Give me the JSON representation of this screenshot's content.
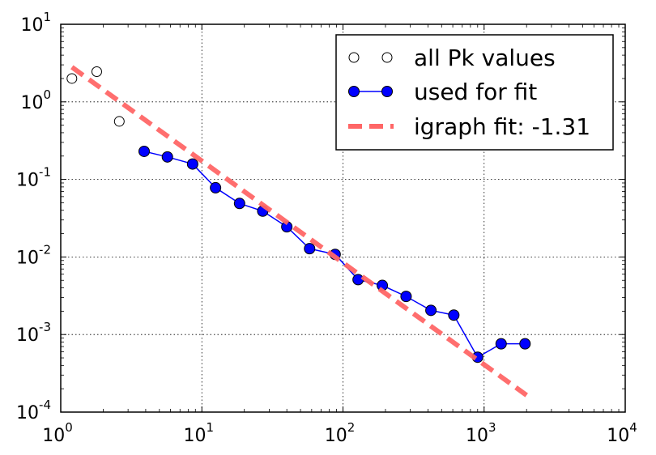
{
  "chart_data": {
    "type": "scatter",
    "x_scale": "log",
    "y_scale": "log",
    "xlim": [
      1,
      10000
    ],
    "ylim": [
      0.0001,
      10
    ],
    "grid": true,
    "legend_position": "top-right",
    "x_ticks": [
      {
        "value": 1,
        "base": "10",
        "exp": "0"
      },
      {
        "value": 10,
        "base": "10",
        "exp": "1"
      },
      {
        "value": 100,
        "base": "10",
        "exp": "2"
      },
      {
        "value": 1000,
        "base": "10",
        "exp": "3"
      },
      {
        "value": 10000,
        "base": "10",
        "exp": "4"
      }
    ],
    "y_ticks": [
      {
        "value": 0.0001,
        "base": "10",
        "exp": "-4"
      },
      {
        "value": 0.001,
        "base": "10",
        "exp": "-3"
      },
      {
        "value": 0.01,
        "base": "10",
        "exp": "-2"
      },
      {
        "value": 0.1,
        "base": "10",
        "exp": "-1"
      },
      {
        "value": 1,
        "base": "10",
        "exp": "0"
      },
      {
        "value": 10,
        "base": "10",
        "exp": "1"
      }
    ],
    "series": [
      {
        "name": "all Pk values",
        "style": "open-markers",
        "color": "#000000",
        "fill": "#ffffff",
        "points": [
          {
            "x": 1.2,
            "y": 2.0
          },
          {
            "x": 1.8,
            "y": 2.45
          },
          {
            "x": 2.6,
            "y": 0.56
          }
        ]
      },
      {
        "name": "used for fit",
        "style": "line-markers",
        "color": "#0000ff",
        "fill": "#0000ff",
        "points": [
          {
            "x": 3.9,
            "y": 0.23
          },
          {
            "x": 5.7,
            "y": 0.195
          },
          {
            "x": 8.6,
            "y": 0.158
          },
          {
            "x": 12.5,
            "y": 0.078
          },
          {
            "x": 18.5,
            "y": 0.049
          },
          {
            "x": 27,
            "y": 0.039
          },
          {
            "x": 40,
            "y": 0.0245
          },
          {
            "x": 58,
            "y": 0.0128
          },
          {
            "x": 88,
            "y": 0.0108
          },
          {
            "x": 128,
            "y": 0.0051
          },
          {
            "x": 190,
            "y": 0.0043
          },
          {
            "x": 280,
            "y": 0.0031
          },
          {
            "x": 420,
            "y": 0.00205
          },
          {
            "x": 610,
            "y": 0.00178
          },
          {
            "x": 900,
            "y": 0.00051
          },
          {
            "x": 1320,
            "y": 0.00076
          },
          {
            "x": 1950,
            "y": 0.00076
          }
        ]
      },
      {
        "name": "igraph fit: -1.31",
        "style": "dashed-line",
        "color": "#ff6666",
        "points": [
          {
            "x": 1.2,
            "y": 2.8
          },
          {
            "x": 2000,
            "y": 0.000165
          }
        ]
      }
    ]
  }
}
